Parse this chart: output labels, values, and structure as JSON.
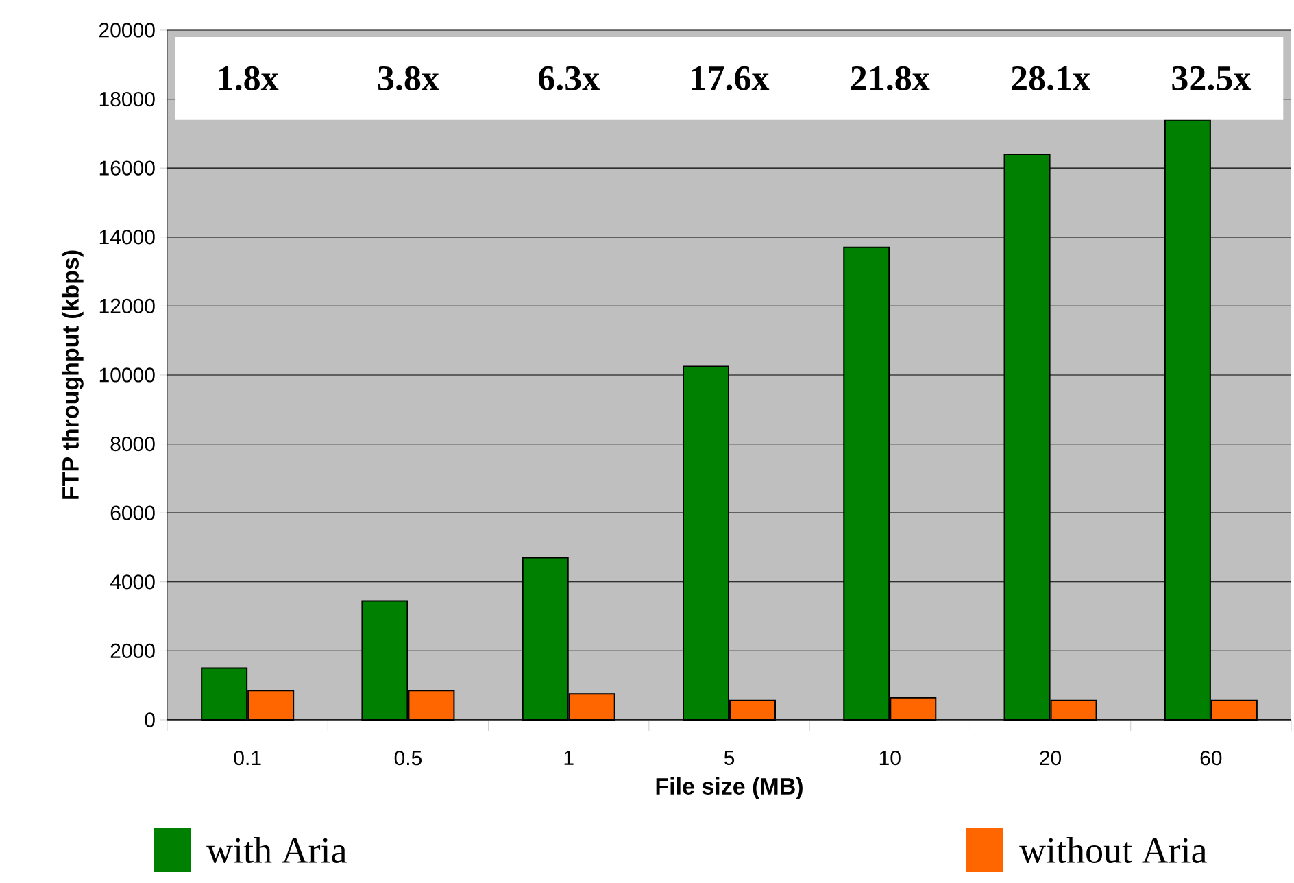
{
  "chart_data": {
    "type": "bar",
    "xlabel": "File size (MB)",
    "ylabel": "FTP throughput (kbps)",
    "categories": [
      "0.1",
      "0.5",
      "1",
      "5",
      "10",
      "20",
      "60"
    ],
    "series": [
      {
        "name": "with Aria",
        "color": "#008000",
        "values": [
          1500,
          3450,
          4700,
          10250,
          13700,
          16400,
          17400
        ]
      },
      {
        "name": "without Aria",
        "color": "#ff6600",
        "values": [
          850,
          850,
          750,
          560,
          640,
          560,
          560
        ]
      }
    ],
    "ylim": [
      0,
      20000
    ],
    "yticks": [
      0,
      2000,
      4000,
      6000,
      8000,
      10000,
      12000,
      14000,
      16000,
      18000,
      20000
    ],
    "annotations": [
      "1.8x",
      "3.8x",
      "6.3x",
      "17.6x",
      "21.8x",
      "28.1x",
      "32.5x"
    ],
    "grid": "y",
    "legend": "bottom"
  }
}
